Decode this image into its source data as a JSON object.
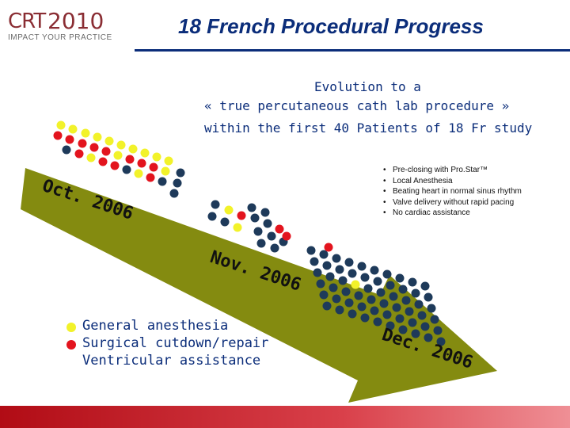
{
  "logo": {
    "part1": "CRT",
    "part2": "2010",
    "tagline": "IMPACT YOUR PRACTICE"
  },
  "title": "18 French Procedural Progress",
  "evolution": {
    "line1": "Evolution to a",
    "line2": "« true percutaneous cath lab procedure »",
    "line3": "within the first 40 Patients of 18 Fr study"
  },
  "bullets": [
    "Pre-closing with Pro.Star™",
    "Local Anesthesia",
    "Beating heart in normal sinus rhythm",
    "Valve delivery without rapid pacing",
    "No cardiac assistance"
  ],
  "dates": {
    "d1": "Oct. 2006",
    "d2": "Nov. 2006",
    "d3": "Dec. 2006"
  },
  "legend": [
    {
      "label": "General anesthesia",
      "color": "#f2f22a"
    },
    {
      "label": "Surgical cutdown/repair",
      "color": "#e3141e"
    },
    {
      "label": "Ventricular assistance",
      "color": ""
    }
  ],
  "colors": {
    "yellow": "#f2f22a",
    "red": "#e3141e",
    "navy": "#1e3a5a",
    "arrow": "#848b10",
    "title": "#0b2d7a"
  }
}
